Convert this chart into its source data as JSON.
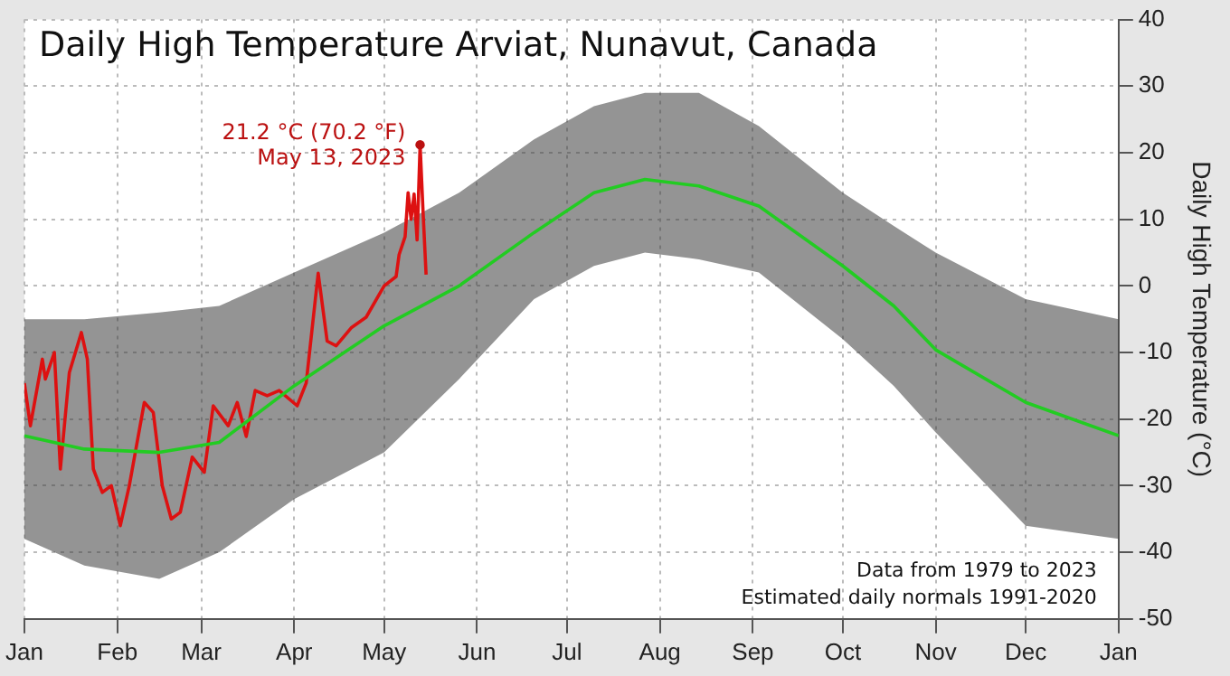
{
  "chart_data": {
    "type": "line",
    "title": "Daily High Temperature Arviat, Nunavut, Canada",
    "ylabel": "Daily High Temperature (°C)",
    "xlim": [
      "2023-01-01",
      "2024-01-01"
    ],
    "xticks": [
      {
        "value": "2023-01-01",
        "label": "Jan"
      },
      {
        "value": "2023-02-01",
        "label": "Feb"
      },
      {
        "value": "2023-03-01",
        "label": "Mar"
      },
      {
        "value": "2023-04-01",
        "label": "Apr"
      },
      {
        "value": "2023-05-01",
        "label": "May"
      },
      {
        "value": "2023-06-01",
        "label": "Jun"
      },
      {
        "value": "2023-07-01",
        "label": "Jul"
      },
      {
        "value": "2023-08-01",
        "label": "Aug"
      },
      {
        "value": "2023-09-01",
        "label": "Sep"
      },
      {
        "value": "2023-10-01",
        "label": "Oct"
      },
      {
        "value": "2023-11-01",
        "label": "Nov"
      },
      {
        "value": "2023-12-01",
        "label": "Dec"
      },
      {
        "value": "2024-01-01",
        "label": "Jan"
      }
    ],
    "ylim": [
      -50,
      40
    ],
    "yticks": [
      -50,
      -40,
      -30,
      -20,
      -10,
      0,
      10,
      20,
      30,
      40
    ],
    "grid": true,
    "series": [
      {
        "color": "#22cc22",
        "x": [
          "2023-01-01",
          "2023-01-21",
          "2023-02-15",
          "2023-03-07",
          "2023-04-01",
          "2023-05-01",
          "2023-05-26",
          "2023-06-20",
          "2023-07-10",
          "2023-07-27",
          "2023-08-14",
          "2023-09-03",
          "2023-10-01",
          "2023-10-18",
          "2023-11-01",
          "2023-12-01",
          "2024-01-01"
        ],
        "values": [
          -22.5,
          -24.5,
          -25,
          -23.5,
          -15,
          -6,
          0,
          8,
          14,
          16,
          15,
          12,
          3,
          -3,
          -9.6,
          -17.5,
          -22.5
        ],
        "lower": [
          -38,
          -42,
          -44,
          -40,
          -32,
          -25,
          -14,
          -2,
          3,
          5,
          4,
          2,
          -8,
          -15,
          -22,
          -36,
          -38
        ],
        "upper": [
          -5,
          -5,
          -4,
          -3,
          2,
          8,
          14,
          22,
          27,
          29,
          29,
          24,
          14,
          9,
          5,
          -2,
          -5
        ]
      },
      {
        "color": "#dd1111",
        "x": [
          "2023-01-01",
          "2023-01-03",
          "2023-01-07",
          "2023-01-08",
          "2023-01-11",
          "2023-01-13",
          "2023-01-16",
          "2023-01-20",
          "2023-01-22",
          "2023-01-24",
          "2023-01-27",
          "2023-01-30",
          "2023-02-02",
          "2023-02-05",
          "2023-02-10",
          "2023-02-13",
          "2023-02-16",
          "2023-02-19",
          "2023-02-22",
          "2023-02-26",
          "2023-03-02",
          "2023-03-05",
          "2023-03-10",
          "2023-03-13",
          "2023-03-16",
          "2023-03-19",
          "2023-03-23",
          "2023-03-27",
          "2023-04-02",
          "2023-04-05",
          "2023-04-09",
          "2023-04-12",
          "2023-04-15",
          "2023-04-20",
          "2023-04-25",
          "2023-05-01",
          "2023-05-05",
          "2023-05-06",
          "2023-05-08",
          "2023-05-09",
          "2023-05-10",
          "2023-05-11",
          "2023-05-12",
          "2023-05-13",
          "2023-05-14",
          "2023-05-15"
        ],
        "values": [
          -14.6,
          -21,
          -11,
          -14,
          -10,
          -27.5,
          -13,
          -7,
          -11,
          -27.5,
          -31,
          -30,
          -36,
          -30,
          -17.5,
          -19,
          -30,
          -35,
          -34,
          -25.7,
          -28,
          -18,
          -21,
          -17.5,
          -22.6,
          -15.7,
          -16.5,
          -15.7,
          -18,
          -14.6,
          1.9,
          -8.3,
          -9,
          -6.3,
          -4.7,
          0,
          1.4,
          4.7,
          7.4,
          14,
          10,
          13.8,
          6.9,
          21.2,
          11,
          1.7
        ]
      }
    ],
    "annotations": [
      {
        "text": "21.2 °C (70.2 °F)\nMay 13, 2023",
        "x": "2023-05-13",
        "y": 21.2
      },
      "Data from 1979 to 2023",
      "Estimated daily normals 1991-2020"
    ]
  }
}
